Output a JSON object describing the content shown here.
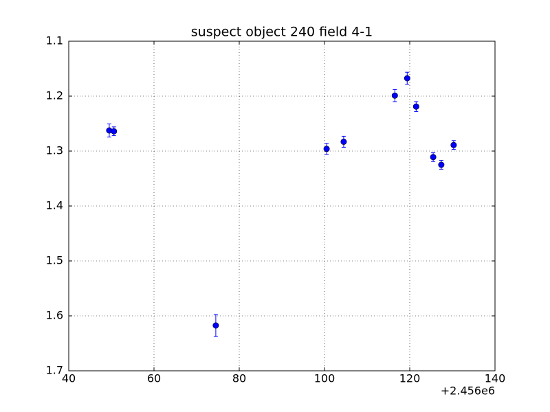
{
  "chart_data": {
    "type": "errorbar",
    "title": "suspect object 240 field 4-1",
    "x_offset": "+2.456e6",
    "x": [
      49.5,
      50.6,
      74.5,
      100.5,
      104.5,
      116.5,
      119.4,
      121.5,
      125.5,
      127.4,
      130.3
    ],
    "values": [
      1.2625,
      1.264,
      1.6175,
      1.296,
      1.283,
      1.199,
      1.1675,
      1.219,
      1.311,
      1.325,
      1.289
    ],
    "errors": [
      0.012,
      0.008,
      0.02,
      0.01,
      0.01,
      0.011,
      0.011,
      0.009,
      0.008,
      0.008,
      0.008
    ],
    "color": "#0000ff",
    "xlim": [
      40,
      140
    ],
    "xticks": [
      40,
      60,
      80,
      100,
      120,
      140
    ],
    "ylim": [
      1.1,
      1.7
    ],
    "yticks": [
      1.1,
      1.2,
      1.3,
      1.4,
      1.5,
      1.6,
      1.7
    ],
    "y_inverted": true,
    "grid": true
  }
}
